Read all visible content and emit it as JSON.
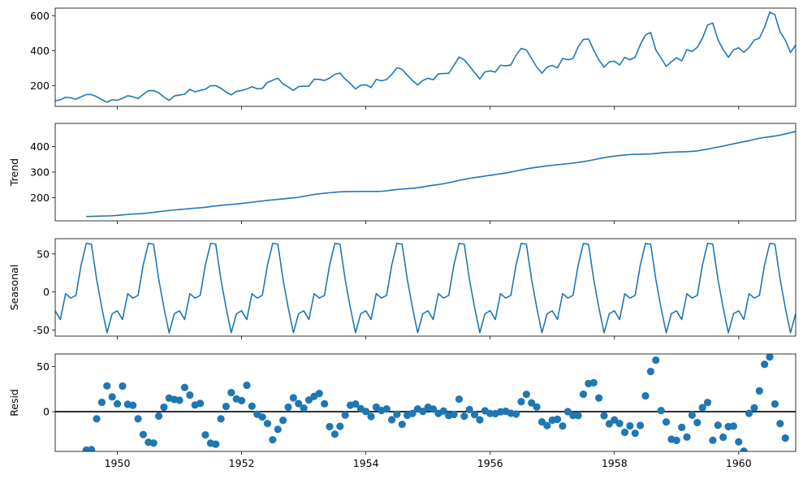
{
  "chart_data": [
    {
      "type": "line",
      "panel": "observed",
      "ylabel": "",
      "ylim": [
        80,
        645
      ],
      "yticks": [
        200,
        400,
        600
      ],
      "xlim": [
        1949.0,
        1960.917
      ],
      "xticks": [
        1950,
        1952,
        1954,
        1956,
        1958,
        1960
      ],
      "x_start": 1949.0,
      "x_step": 0.08333,
      "values": [
        112,
        118,
        132,
        129,
        121,
        135,
        148,
        148,
        136,
        119,
        104,
        118,
        115,
        126,
        141,
        135,
        125,
        149,
        170,
        170,
        158,
        133,
        114,
        140,
        145,
        150,
        178,
        163,
        172,
        178,
        199,
        199,
        184,
        162,
        146,
        166,
        171,
        180,
        193,
        181,
        183,
        218,
        230,
        242,
        209,
        191,
        172,
        194,
        196,
        196,
        236,
        235,
        229,
        243,
        264,
        272,
        237,
        211,
        180,
        201,
        204,
        188,
        235,
        227,
        234,
        264,
        302,
        293,
        259,
        229,
        203,
        229,
        242,
        233,
        267,
        269,
        270,
        315,
        364,
        347,
        312,
        274,
        237,
        278,
        284,
        277,
        317,
        313,
        318,
        374,
        413,
        405,
        355,
        306,
        271,
        306,
        315,
        301,
        356,
        348,
        355,
        422,
        465,
        467,
        404,
        347,
        305,
        336,
        340,
        318,
        362,
        348,
        363,
        435,
        491,
        505,
        404,
        359,
        310,
        337,
        360,
        342,
        406,
        396,
        420,
        472,
        548,
        559,
        463,
        407,
        362,
        405,
        417,
        391,
        419,
        461,
        472,
        535,
        622,
        606,
        508,
        461,
        390,
        432
      ]
    },
    {
      "type": "line",
      "panel": "trend",
      "ylabel": "Trend",
      "ylim": [
        110,
        490
      ],
      "yticks": [
        200,
        300,
        400
      ],
      "xlim": [
        1949.0,
        1960.917
      ],
      "xticks": [
        1950,
        1952,
        1954,
        1956,
        1958,
        1960
      ],
      "x_start": 1949.5,
      "x_step": 0.08333,
      "values": [
        126.8,
        127.2,
        127.9,
        128.6,
        129.0,
        129.8,
        131.3,
        133.1,
        134.9,
        136.4,
        137.4,
        138.8,
        140.9,
        143.2,
        145.7,
        148.0,
        150.4,
        152.4,
        154.2,
        155.9,
        157.7,
        159.5,
        161.0,
        162.9,
        165.5,
        168.1,
        170.4,
        172.4,
        174.1,
        175.6,
        177.8,
        180.1,
        182.5,
        185.0,
        187.4,
        189.8,
        191.6,
        193.6,
        195.8,
        197.7,
        199.6,
        201.8,
        205.6,
        209.4,
        212.7,
        215.4,
        217.6,
        219.7,
        221.4,
        223.0,
        223.7,
        224.1,
        224.4,
        224.7,
        224.8,
        224.8,
        224.6,
        225.2,
        227.2,
        229.8,
        232.2,
        233.9,
        235.3,
        236.9,
        239.3,
        242.4,
        245.9,
        248.8,
        251.5,
        254.8,
        258.8,
        263.2,
        267.6,
        271.8,
        275.5,
        278.8,
        281.7,
        284.5,
        287.5,
        290.5,
        293.4,
        296.6,
        300.2,
        304.3,
        308.5,
        312.5,
        316.1,
        318.9,
        321.5,
        324.3,
        326.5,
        328.6,
        330.8,
        332.9,
        335.2,
        337.9,
        341.0,
        344.3,
        348.3,
        352.5,
        356.4,
        359.6,
        362.3,
        364.6,
        366.6,
        368.5,
        369.4,
        369.6,
        370.1,
        371.0,
        372.7,
        375.0,
        376.6,
        377.6,
        378.6,
        379.0,
        379.6,
        380.8,
        382.7,
        386.0,
        389.6,
        393.8,
        397.8,
        401.6,
        406.0,
        410.3,
        414.6,
        418.5,
        422.6,
        427.5,
        432.0,
        435.4,
        438.0,
        440.8,
        444.4,
        448.9,
        453.8,
        458.3,
        462.2,
        465.6,
        468.8,
        471.3,
        472.7
      ]
    },
    {
      "type": "line",
      "panel": "seasonal",
      "ylabel": "Seasonal",
      "ylim": [
        -58,
        70
      ],
      "yticks": [
        -50,
        0,
        50
      ],
      "xlim": [
        1949.0,
        1960.917
      ],
      "xticks": [
        1950,
        1952,
        1954,
        1956,
        1958,
        1960
      ],
      "x_start": 1949.0,
      "x_step": 0.08333,
      "pattern": [
        -24.75,
        -36.19,
        -2.24,
        -8.04,
        -4.51,
        35.4,
        63.83,
        62.82,
        16.52,
        -20.64,
        -53.59,
        -28.62
      ],
      "years": 12
    },
    {
      "type": "scatter",
      "panel": "resid",
      "ylabel": "Resid",
      "ylim": [
        -44,
        64
      ],
      "yticks": [
        0,
        50
      ],
      "xlim": [
        1949.0,
        1960.917
      ],
      "xticks": [
        1950,
        1952,
        1954,
        1956,
        1958,
        1960
      ],
      "x_start": 1949.5,
      "x_step": 0.08333,
      "values": [
        -42.6,
        -42.1,
        -7.9,
        10.4,
        28.6,
        16.4,
        8.8,
        28.4,
        8.2,
        7.1,
        -7.9,
        -25.3,
        -33.9,
        -34.7,
        -4.8,
        5.0,
        15.1,
        13.6,
        12.7,
        26.9,
        18.5,
        7.4,
        9.2,
        -25.7,
        -34.9,
        -36.0,
        -7.9,
        5.9,
        21.2,
        14.2,
        12.3,
        29.3,
        6.1,
        -2.8,
        -5.9,
        -13.1,
        -31.1,
        -19.6,
        -9.6,
        5.0,
        15.4,
        9.0,
        3.9,
        13.0,
        17.0,
        20.2,
        8.8,
        -16.5,
        -24.9,
        -16.2,
        -3.8,
        7.2,
        8.6,
        3.4,
        0.2,
        -5.3,
        5.1,
        1.4,
        3.0,
        -8.9,
        -2.8,
        -14.0,
        -3.9,
        -1.9,
        3.0,
        0.3,
        5.0,
        2.9,
        -1.9,
        0.8,
        -4.3,
        -3.0,
        13.9,
        -5.0,
        2.4,
        -3.3,
        -9.0,
        1.0,
        -2.0,
        -2.1,
        -0.1,
        0.5,
        -1.7,
        -2.6,
        11.1,
        19.3,
        9.8,
        5.2,
        -11.2,
        -15.4,
        -9.3,
        -8.4,
        -15.9,
        0.1,
        -4.1,
        -4.3,
        19.4,
        31.2,
        32.1,
        15.2,
        -4.4,
        -13.4,
        -9.1,
        -13.1,
        -22.8,
        -15.7,
        -23.9,
        -15.2,
        17.6,
        44.6,
        57.2,
        1.2,
        -11.4,
        -30.5,
        -31.8,
        -17.3,
        -28.1,
        -3.8,
        -12.0,
        4.5,
        10.2,
        -31.7,
        -15.0,
        -28.3,
        -16.5,
        -16.0,
        -33.4,
        -43.8,
        -1.8,
        4.3,
        23.1,
        52.5,
        60.6,
        8.6,
        -13.2,
        -29.2
      ]
    }
  ]
}
